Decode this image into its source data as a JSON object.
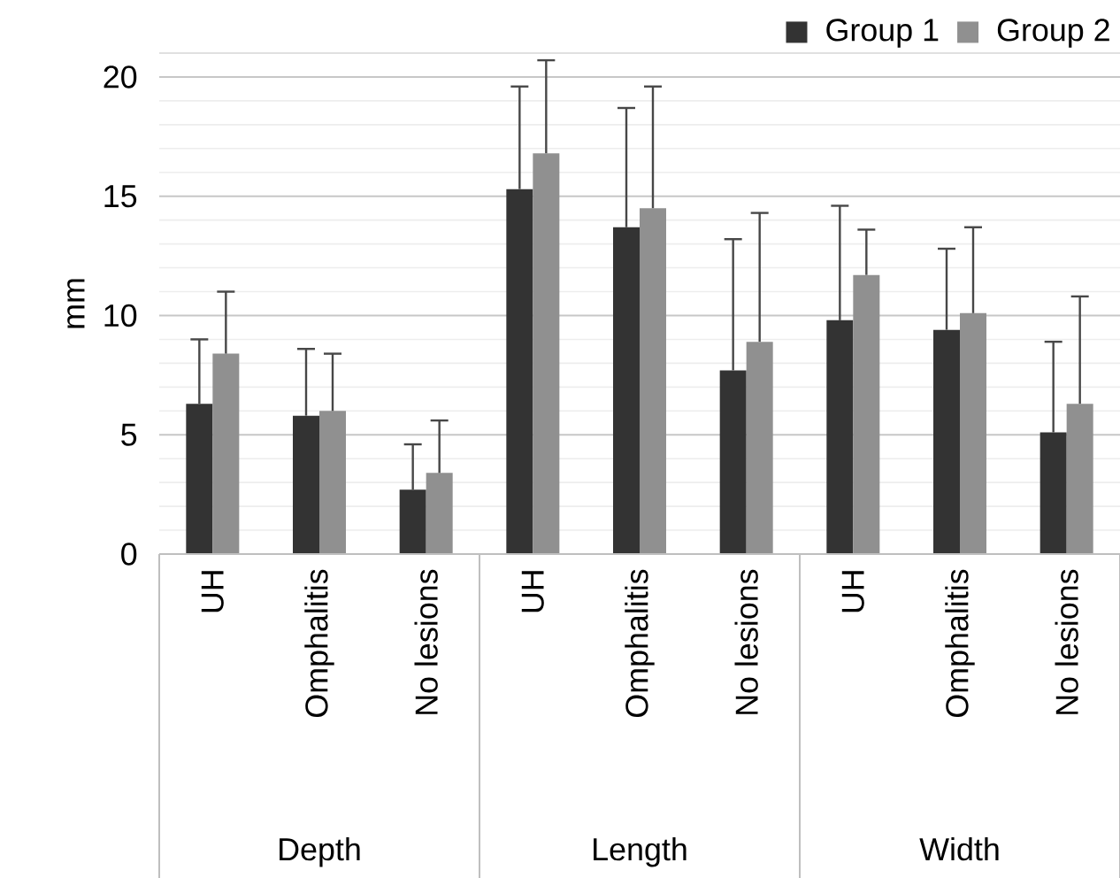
{
  "chart_data": {
    "type": "bar",
    "ylabel": "mm",
    "categories": [
      "UH",
      "Omphalitis",
      "No lesions",
      "UH",
      "Omphalitis",
      "No lesions",
      "UH",
      "Omphalitis",
      "No lesions"
    ],
    "series": [
      {
        "name": "Group 1",
        "color": "#333333",
        "values": [
          6.3,
          5.8,
          2.7,
          15.3,
          13.7,
          7.7,
          9.8,
          9.4,
          5.1
        ],
        "errors": [
          [
            6.3,
            9.0
          ],
          [
            5.8,
            8.6
          ],
          [
            2.7,
            4.6
          ],
          [
            15.3,
            19.6
          ],
          [
            13.7,
            18.7
          ],
          [
            7.7,
            13.2
          ],
          [
            9.8,
            14.6
          ],
          [
            9.4,
            12.8
          ],
          [
            5.1,
            8.9
          ]
        ]
      },
      {
        "name": "Group 2",
        "color": "#909090",
        "values": [
          8.4,
          6.0,
          3.4,
          16.8,
          14.5,
          8.9,
          11.7,
          10.1,
          6.3
        ],
        "errors": [
          [
            8.4,
            11.0
          ],
          [
            6.0,
            8.4
          ],
          [
            3.4,
            5.6
          ],
          [
            16.8,
            20.7
          ],
          [
            14.5,
            19.6
          ],
          [
            8.9,
            14.3
          ],
          [
            11.7,
            13.6
          ],
          [
            10.1,
            13.7
          ],
          [
            6.3,
            10.8
          ]
        ]
      }
    ],
    "ylim": [
      0,
      21
    ],
    "yticks": [
      0,
      5,
      10,
      15,
      20
    ],
    "grid": "y",
    "legend": "top right",
    "annotations": [
      "Depth",
      "Length",
      "Width"
    ]
  }
}
